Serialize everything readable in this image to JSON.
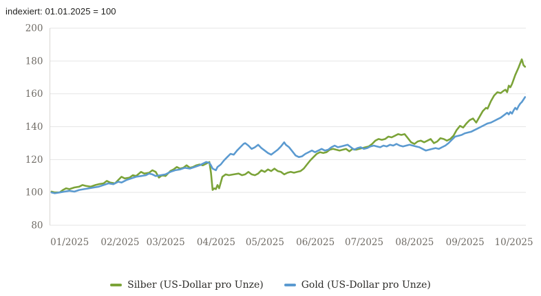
{
  "title": "indexiert: 01.01.2025 = 100",
  "colors": {
    "silver": "#7ba338",
    "gold": "#5b9ad0",
    "grid": "#e5e5e5",
    "axis_line": "#d8d6d2",
    "tick_text": "#6f6b65",
    "title_text": "#1d1d1b",
    "legend_text": "#2b2a27"
  },
  "legend": {
    "items": [
      {
        "label": "Silber (US-Dollar pro Unze)",
        "color_key": "silver"
      },
      {
        "label": "Gold (US-Dollar pro Unze)",
        "color_key": "gold"
      }
    ]
  },
  "chart_data": {
    "type": "line",
    "title": "indexiert: 01.01.2025 = 100",
    "xlabel": "",
    "ylabel": "",
    "x_unit": "days since 2025-01-01",
    "ylim": [
      80,
      200
    ],
    "xlim": [
      -6,
      286.5
    ],
    "grid": true,
    "legend_position": "bottom-center",
    "y_ticks": [
      200,
      180,
      160,
      140,
      120,
      100,
      80
    ],
    "x_ticks": [
      {
        "label": "01/2025",
        "day": 0
      },
      {
        "label": "02/2025",
        "day": 31
      },
      {
        "label": "03/2025",
        "day": 59
      },
      {
        "label": "04/2025",
        "day": 90
      },
      {
        "label": "05/2025",
        "day": 120
      },
      {
        "label": "06/2025",
        "day": 151
      },
      {
        "label": "07/2025",
        "day": 181
      },
      {
        "label": "08/2025",
        "day": 212
      },
      {
        "label": "09/2025",
        "day": 243
      },
      {
        "label": "10/2025",
        "day": 273
      }
    ],
    "series": [
      {
        "name": "Silber (US-Dollar pro Unze)",
        "color_key": "silver",
        "points": [
          [
            -5,
            100.5
          ],
          [
            -3,
            100
          ],
          [
            0,
            100
          ],
          [
            2,
            101.5
          ],
          [
            4,
            102.5
          ],
          [
            6,
            102
          ],
          [
            9,
            103
          ],
          [
            12,
            103.5
          ],
          [
            14,
            104.5
          ],
          [
            16,
            104
          ],
          [
            19,
            103.5
          ],
          [
            22,
            104.5
          ],
          [
            24,
            105
          ],
          [
            27,
            105.5
          ],
          [
            29,
            107
          ],
          [
            31,
            106
          ],
          [
            34,
            105.5
          ],
          [
            36,
            107.5
          ],
          [
            38,
            109.5
          ],
          [
            40,
            108.5
          ],
          [
            43,
            109
          ],
          [
            45,
            110.5
          ],
          [
            47,
            110
          ],
          [
            50,
            112.5
          ],
          [
            52,
            111.5
          ],
          [
            55,
            112
          ],
          [
            57,
            113.5
          ],
          [
            59,
            112.5
          ],
          [
            61,
            109
          ],
          [
            63,
            110.5
          ],
          [
            65,
            110
          ],
          [
            68,
            113
          ],
          [
            70,
            114
          ],
          [
            72,
            115.5
          ],
          [
            74,
            114.5
          ],
          [
            76,
            115
          ],
          [
            78,
            116.5
          ],
          [
            80,
            115
          ],
          [
            82,
            115.5
          ],
          [
            84,
            116.5
          ],
          [
            86,
            117
          ],
          [
            88,
            116.5
          ],
          [
            90,
            117.5
          ],
          [
            92,
            118.5
          ],
          [
            93,
            112
          ],
          [
            94,
            101.5
          ],
          [
            95,
            102.5
          ],
          [
            96,
            102
          ],
          [
            97,
            104.5
          ],
          [
            98,
            102.5
          ],
          [
            100,
            109.5
          ],
          [
            102,
            111
          ],
          [
            104,
            110.5
          ],
          [
            107,
            111
          ],
          [
            110,
            111.5
          ],
          [
            112,
            110.5
          ],
          [
            114,
            111
          ],
          [
            116,
            112.5
          ],
          [
            118,
            111
          ],
          [
            120,
            110.5
          ],
          [
            122,
            111.5
          ],
          [
            124,
            113.5
          ],
          [
            126,
            112.5
          ],
          [
            128,
            114
          ],
          [
            130,
            113
          ],
          [
            132,
            114.5
          ],
          [
            134,
            113
          ],
          [
            136,
            112.5
          ],
          [
            138,
            111
          ],
          [
            140,
            112
          ],
          [
            142,
            112.5
          ],
          [
            144,
            112
          ],
          [
            146,
            112.5
          ],
          [
            148,
            113
          ],
          [
            150,
            114.5
          ],
          [
            152,
            117
          ],
          [
            154,
            119.5
          ],
          [
            156,
            121.5
          ],
          [
            158,
            123.5
          ],
          [
            160,
            124.5
          ],
          [
            162,
            124
          ],
          [
            164,
            124.5
          ],
          [
            166,
            126
          ],
          [
            168,
            126.5
          ],
          [
            170,
            126
          ],
          [
            172,
            125.5
          ],
          [
            174,
            126
          ],
          [
            176,
            126.5
          ],
          [
            178,
            125
          ],
          [
            180,
            126.5
          ],
          [
            182,
            126
          ],
          [
            184,
            126.5
          ],
          [
            186,
            127
          ],
          [
            188,
            127.5
          ],
          [
            190,
            128
          ],
          [
            192,
            129.5
          ],
          [
            194,
            131.5
          ],
          [
            196,
            132.5
          ],
          [
            198,
            132
          ],
          [
            200,
            132.5
          ],
          [
            202,
            134
          ],
          [
            204,
            133.5
          ],
          [
            206,
            134.5
          ],
          [
            208,
            135.5
          ],
          [
            210,
            135
          ],
          [
            212,
            135.5
          ],
          [
            214,
            133
          ],
          [
            216,
            130.5
          ],
          [
            218,
            129.5
          ],
          [
            220,
            131
          ],
          [
            222,
            131.5
          ],
          [
            224,
            130.5
          ],
          [
            226,
            131.5
          ],
          [
            228,
            132.5
          ],
          [
            230,
            130
          ],
          [
            232,
            131
          ],
          [
            234,
            133
          ],
          [
            236,
            132.5
          ],
          [
            238,
            131.5
          ],
          [
            240,
            132.5
          ],
          [
            242,
            134.5
          ],
          [
            244,
            138
          ],
          [
            246,
            140.5
          ],
          [
            248,
            139.5
          ],
          [
            250,
            142
          ],
          [
            252,
            144
          ],
          [
            254,
            145
          ],
          [
            256,
            142.5
          ],
          [
            258,
            146
          ],
          [
            260,
            149.5
          ],
          [
            262,
            151.5
          ],
          [
            263,
            151
          ],
          [
            265,
            155.5
          ],
          [
            267,
            159
          ],
          [
            269,
            161
          ],
          [
            271,
            160.5
          ],
          [
            273,
            162
          ],
          [
            274,
            162.5
          ],
          [
            275,
            161
          ],
          [
            276,
            165
          ],
          [
            277,
            164
          ],
          [
            278,
            166
          ],
          [
            280,
            171.5
          ],
          [
            282,
            176
          ],
          [
            283,
            178.5
          ],
          [
            284,
            181
          ],
          [
            285,
            177.5
          ],
          [
            286,
            176.5
          ]
        ]
      },
      {
        "name": "Gold (US-Dollar pro Unze)",
        "color_key": "gold",
        "points": [
          [
            -5,
            100
          ],
          [
            -3,
            99.5
          ],
          [
            0,
            100
          ],
          [
            3,
            100.5
          ],
          [
            6,
            101
          ],
          [
            9,
            100.5
          ],
          [
            12,
            101.5
          ],
          [
            15,
            102
          ],
          [
            18,
            102.5
          ],
          [
            21,
            103
          ],
          [
            24,
            103.5
          ],
          [
            27,
            104.5
          ],
          [
            30,
            105.5
          ],
          [
            33,
            105
          ],
          [
            36,
            106.5
          ],
          [
            38,
            106
          ],
          [
            41,
            107.5
          ],
          [
            44,
            108.5
          ],
          [
            47,
            109.5
          ],
          [
            50,
            110
          ],
          [
            53,
            110.5
          ],
          [
            55,
            111.5
          ],
          [
            57,
            111
          ],
          [
            59,
            110
          ],
          [
            62,
            110.5
          ],
          [
            65,
            111
          ],
          [
            68,
            112.5
          ],
          [
            71,
            113.5
          ],
          [
            74,
            114
          ],
          [
            77,
            115
          ],
          [
            80,
            114.5
          ],
          [
            83,
            115.5
          ],
          [
            86,
            116.5
          ],
          [
            88,
            117.5
          ],
          [
            90,
            118.5
          ],
          [
            92,
            118
          ],
          [
            93,
            116.5
          ],
          [
            94,
            114.5
          ],
          [
            96,
            113.5
          ],
          [
            97,
            115.5
          ],
          [
            99,
            117
          ],
          [
            101,
            119.5
          ],
          [
            103,
            121.5
          ],
          [
            105,
            123.5
          ],
          [
            107,
            123
          ],
          [
            109,
            125.5
          ],
          [
            111,
            127.5
          ],
          [
            113,
            129.5
          ],
          [
            114,
            130
          ],
          [
            116,
            128.5
          ],
          [
            118,
            126.5
          ],
          [
            120,
            127.5
          ],
          [
            122,
            129
          ],
          [
            124,
            127
          ],
          [
            126,
            125.5
          ],
          [
            128,
            124
          ],
          [
            130,
            123
          ],
          [
            132,
            124.5
          ],
          [
            134,
            126
          ],
          [
            136,
            128
          ],
          [
            138,
            130.5
          ],
          [
            139,
            129
          ],
          [
            141,
            127.5
          ],
          [
            143,
            125
          ],
          [
            145,
            122.5
          ],
          [
            147,
            121.5
          ],
          [
            149,
            122
          ],
          [
            151,
            123.5
          ],
          [
            153,
            124.5
          ],
          [
            155,
            125.5
          ],
          [
            157,
            124.5
          ],
          [
            159,
            125.5
          ],
          [
            161,
            126.5
          ],
          [
            163,
            125.5
          ],
          [
            165,
            126
          ],
          [
            167,
            127.5
          ],
          [
            169,
            128.5
          ],
          [
            171,
            127.5
          ],
          [
            173,
            128
          ],
          [
            175,
            128.5
          ],
          [
            177,
            129
          ],
          [
            179,
            127.5
          ],
          [
            181,
            126
          ],
          [
            183,
            127
          ],
          [
            185,
            127.5
          ],
          [
            187,
            126.5
          ],
          [
            189,
            127
          ],
          [
            191,
            128
          ],
          [
            193,
            128.5
          ],
          [
            195,
            128
          ],
          [
            197,
            127.5
          ],
          [
            199,
            128.5
          ],
          [
            201,
            128
          ],
          [
            203,
            129
          ],
          [
            205,
            128.5
          ],
          [
            207,
            129.5
          ],
          [
            209,
            128.5
          ],
          [
            211,
            128
          ],
          [
            213,
            128.5
          ],
          [
            215,
            129
          ],
          [
            217,
            128.5
          ],
          [
            219,
            128
          ],
          [
            221,
            127.5
          ],
          [
            223,
            126.5
          ],
          [
            225,
            125.5
          ],
          [
            227,
            126
          ],
          [
            229,
            126.5
          ],
          [
            231,
            127
          ],
          [
            233,
            126.5
          ],
          [
            235,
            127.5
          ],
          [
            237,
            128.5
          ],
          [
            239,
            130
          ],
          [
            241,
            132
          ],
          [
            243,
            134
          ],
          [
            245,
            134.5
          ],
          [
            247,
            135
          ],
          [
            249,
            136
          ],
          [
            251,
            136.5
          ],
          [
            253,
            137
          ],
          [
            255,
            138
          ],
          [
            257,
            139
          ],
          [
            259,
            140
          ],
          [
            261,
            141
          ],
          [
            263,
            142
          ],
          [
            265,
            142.5
          ],
          [
            267,
            143.5
          ],
          [
            269,
            144.5
          ],
          [
            271,
            145.5
          ],
          [
            273,
            147
          ],
          [
            275,
            148.5
          ],
          [
            276,
            147.5
          ],
          [
            277,
            149
          ],
          [
            278,
            148
          ],
          [
            279,
            150
          ],
          [
            280,
            151.5
          ],
          [
            281,
            150.5
          ],
          [
            282,
            152.5
          ],
          [
            283,
            154
          ],
          [
            284,
            155
          ],
          [
            285,
            156.5
          ],
          [
            286,
            158
          ]
        ]
      }
    ]
  }
}
